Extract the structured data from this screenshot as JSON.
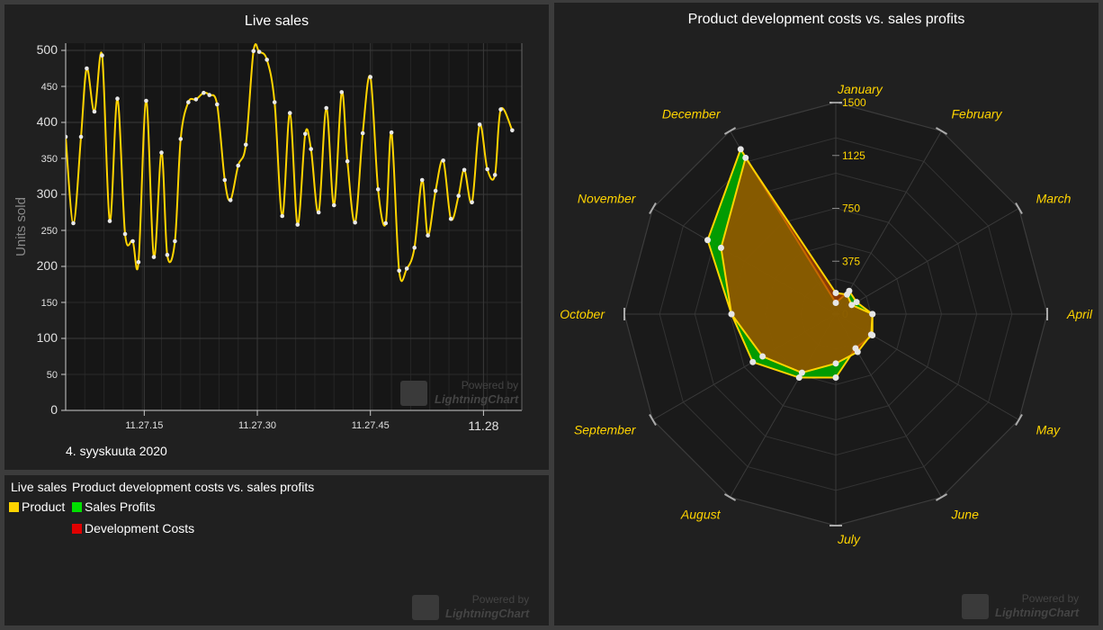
{
  "line_panel": {
    "title": "Live sales",
    "date_label": "4. syyskuuta 2020",
    "watermark_top": "Powered by",
    "watermark_bottom": "LightningChart"
  },
  "legend_panel": {
    "group1_title": "Live sales",
    "group2_title": "Product development costs vs. sales profits",
    "items": [
      {
        "label": "Product",
        "color": "#ffd400"
      },
      {
        "label": "Sales Profits",
        "color": "#00e000"
      },
      {
        "label": "Development Costs",
        "color": "#e00000"
      }
    ],
    "watermark_top": "Powered by",
    "watermark_bottom": "LightningChart"
  },
  "radar_panel": {
    "title": "Product development costs vs. sales profits",
    "watermark_top": "Powered by",
    "watermark_bottom": "LightningChart"
  },
  "chart_data": [
    {
      "type": "line",
      "title": "Live sales",
      "xlabel": "",
      "ylabel": "Units sold",
      "ylim": [
        0,
        510
      ],
      "x_range_minutes": [
        0,
        23.8
      ],
      "x_ticks": [
        {
          "label": "11.27.15",
          "min": 4.1
        },
        {
          "label": "11.27.30",
          "min": 10.0
        },
        {
          "label": "11.27.45",
          "min": 15.9
        },
        {
          "label": "11.28",
          "min": 21.8
        }
      ],
      "y_ticks": [
        {
          "label": "500",
          "v": 500,
          "major": true
        },
        {
          "label": "450",
          "v": 450,
          "major": false
        },
        {
          "label": "400",
          "v": 400,
          "major": true
        },
        {
          "label": "350",
          "v": 350,
          "major": false
        },
        {
          "label": "300",
          "v": 300,
          "major": true
        },
        {
          "label": "250",
          "v": 250,
          "major": false
        },
        {
          "label": "200",
          "v": 200,
          "major": true
        },
        {
          "label": "150",
          "v": 150,
          "major": false
        },
        {
          "label": "100",
          "v": 100,
          "major": true
        },
        {
          "label": "50",
          "v": 50,
          "major": false
        },
        {
          "label": "0",
          "v": 0,
          "major": true
        }
      ],
      "color": "#ffd400",
      "series": [
        {
          "name": "Product",
          "points": [
            [
              0.0,
              380
            ],
            [
              0.4,
              260
            ],
            [
              0.8,
              380
            ],
            [
              1.1,
              475
            ],
            [
              1.5,
              415
            ],
            [
              1.9,
              493
            ],
            [
              2.3,
              263
            ],
            [
              2.7,
              433
            ],
            [
              3.1,
              245
            ],
            [
              3.5,
              235
            ],
            [
              3.8,
              206
            ],
            [
              4.2,
              430
            ],
            [
              4.6,
              213
            ],
            [
              5.0,
              358
            ],
            [
              5.3,
              216
            ],
            [
              5.7,
              235
            ],
            [
              6.0,
              377
            ],
            [
              6.4,
              428
            ],
            [
              6.8,
              432
            ],
            [
              7.2,
              441
            ],
            [
              7.5,
              438
            ],
            [
              7.9,
              425
            ],
            [
              8.3,
              320
            ],
            [
              8.6,
              292
            ],
            [
              9.0,
              340
            ],
            [
              9.4,
              369
            ],
            [
              9.8,
              499
            ],
            [
              10.1,
              498
            ],
            [
              10.5,
              487
            ],
            [
              10.9,
              428
            ],
            [
              11.3,
              270
            ],
            [
              11.7,
              413
            ],
            [
              12.1,
              258
            ],
            [
              12.5,
              384
            ],
            [
              12.8,
              363
            ],
            [
              13.2,
              275
            ],
            [
              13.6,
              420
            ],
            [
              14.0,
              285
            ],
            [
              14.4,
              442
            ],
            [
              14.7,
              346
            ],
            [
              15.1,
              261
            ],
            [
              15.5,
              385
            ],
            [
              15.9,
              463
            ],
            [
              16.3,
              307
            ],
            [
              16.7,
              260
            ],
            [
              17.0,
              386
            ],
            [
              17.4,
              194
            ],
            [
              17.8,
              197
            ],
            [
              18.2,
              226
            ],
            [
              18.6,
              320
            ],
            [
              18.9,
              243
            ],
            [
              19.3,
              305
            ],
            [
              19.7,
              347
            ],
            [
              20.1,
              266
            ],
            [
              20.5,
              298
            ],
            [
              20.8,
              334
            ],
            [
              21.2,
              289
            ],
            [
              21.6,
              397
            ],
            [
              22.0,
              335
            ],
            [
              22.4,
              327
            ],
            [
              22.7,
              418
            ],
            [
              23.3,
              389
            ]
          ]
        }
      ]
    },
    {
      "type": "radar",
      "title": "Product development costs vs. sales profits",
      "axis_max": 1500,
      "rings": [
        0,
        375,
        750,
        1125,
        1500
      ],
      "categories": [
        "January",
        "February",
        "March",
        "April",
        "May",
        "June",
        "July",
        "August",
        "September",
        "October",
        "November",
        "December"
      ],
      "series": [
        {
          "name": "Sales Profits",
          "color": "#00e000",
          "values": [
            80,
            190,
            170,
            260,
            300,
            280,
            450,
            520,
            680,
            740,
            1050,
            1350
          ]
        },
        {
          "name": "Development Costs",
          "color": "#e00000",
          "values": [
            150,
            160,
            130,
            260,
            290,
            310,
            350,
            480,
            600,
            740,
            940,
            1280
          ]
        }
      ]
    }
  ]
}
